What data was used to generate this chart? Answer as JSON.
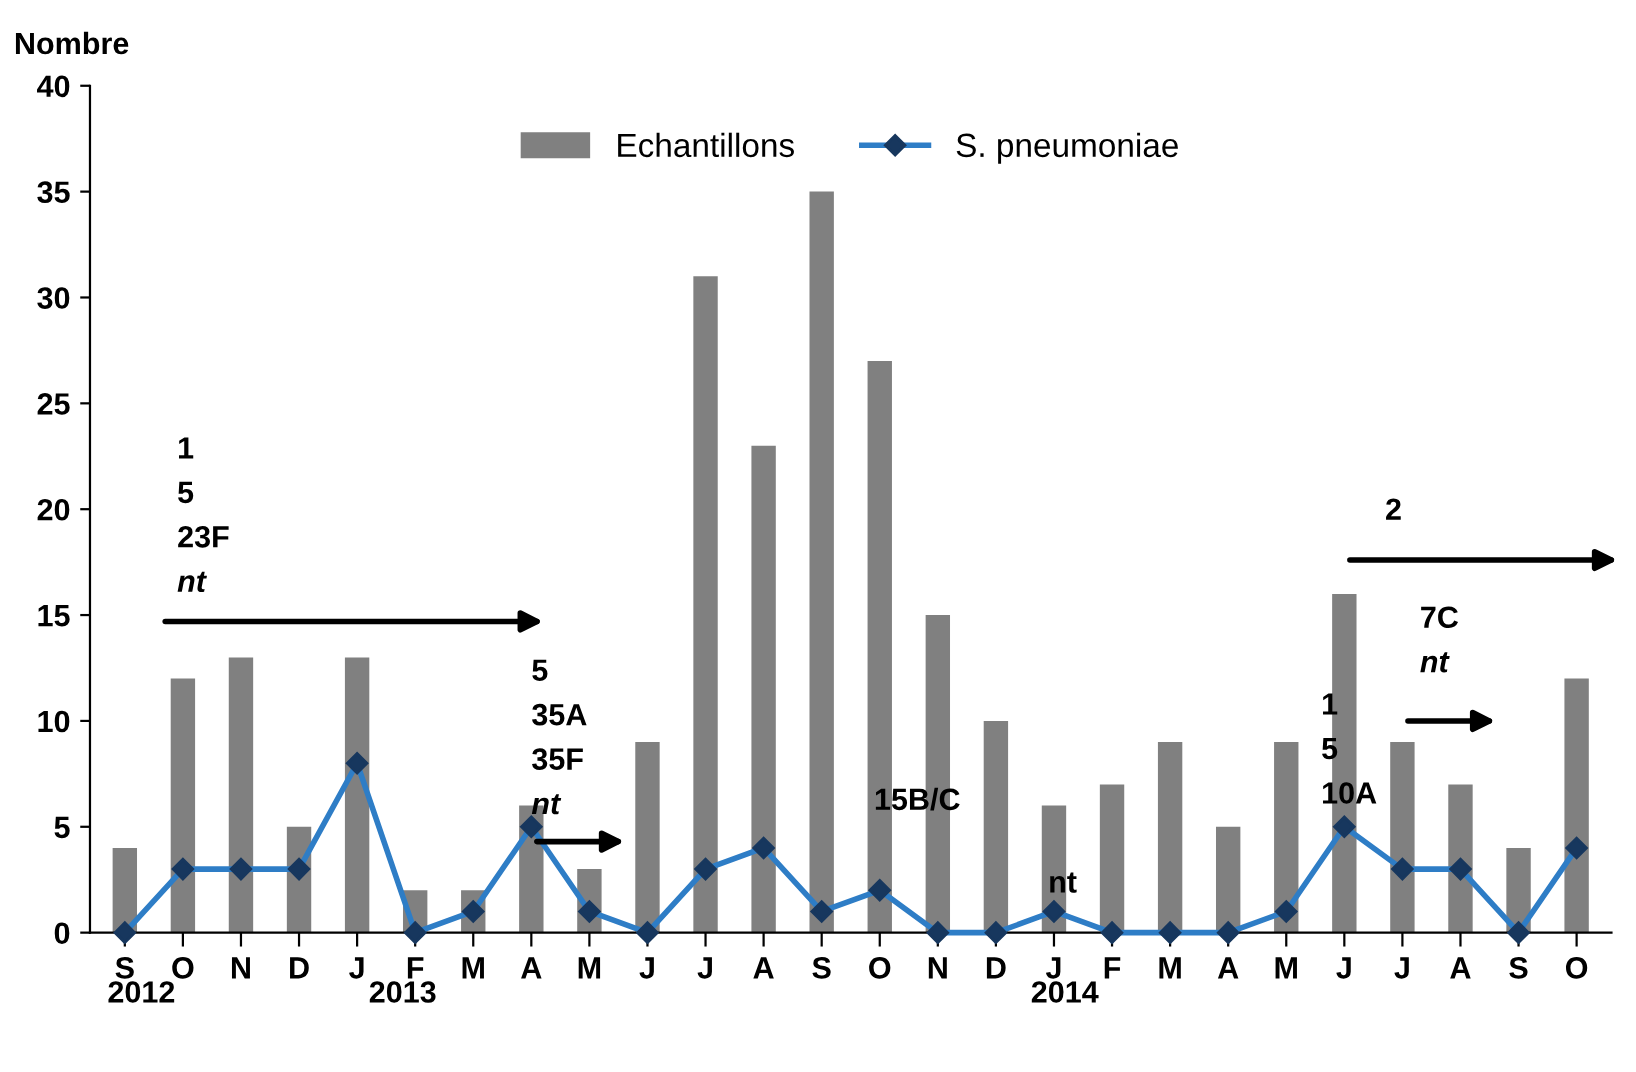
{
  "chart_data": {
    "type": "bar",
    "ylabel": "Nombre",
    "categories": [
      "S",
      "O",
      "N",
      "D",
      "J",
      "F",
      "M",
      "A",
      "M",
      "J",
      "J",
      "A",
      "S",
      "O",
      "N",
      "D",
      "J",
      "F",
      "M",
      "A",
      "M",
      "J",
      "J",
      "A",
      "S",
      "O"
    ],
    "series": [
      {
        "name": "Echantillons",
        "color": "#808080",
        "values": [
          4,
          12,
          13,
          5,
          13,
          2,
          2,
          6,
          3,
          9,
          31,
          23,
          35,
          27,
          15,
          10,
          6,
          7,
          9,
          5,
          9,
          16,
          9,
          7,
          4,
          12
        ]
      },
      {
        "name": "S. pneumoniae",
        "type": "line",
        "color": "#2e7dc6",
        "marker": "diamond",
        "line_style": "solid",
        "values": [
          0,
          3,
          3,
          3,
          8,
          0,
          1,
          5,
          1,
          0,
          3,
          4,
          1,
          2,
          0,
          0,
          1,
          0,
          0,
          0,
          1,
          5,
          3,
          3,
          0,
          4
        ]
      }
    ],
    "ylim": [
      0,
      40
    ],
    "yticks": [
      0,
      5,
      10,
      15,
      20,
      25,
      30,
      35,
      40
    ],
    "grid": false,
    "legend": "top",
    "annotations": [
      "2012",
      "2013",
      "2014",
      "1\n5\n23F\nnt",
      "5\n35A\n35F\nnt",
      "15B/C",
      "nt",
      "1\n5\n10A",
      "7C\nnt",
      "2"
    ]
  }
}
